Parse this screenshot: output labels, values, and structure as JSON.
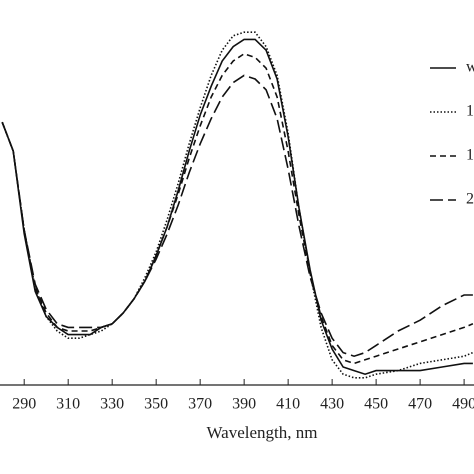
{
  "chart_data": {
    "type": "line",
    "xlabel": "Wavelength, nm",
    "xlim": [
      279,
      494.5
    ],
    "xticks": [
      290,
      310,
      330,
      350,
      370,
      390,
      410,
      430,
      450,
      470,
      490
    ],
    "ylim": [
      0,
      1
    ],
    "x": [
      280,
      285,
      290,
      295,
      300,
      305,
      310,
      315,
      320,
      325,
      330,
      335,
      340,
      345,
      350,
      355,
      360,
      365,
      370,
      375,
      380,
      385,
      390,
      395,
      400,
      405,
      410,
      415,
      420,
      425,
      430,
      435,
      440,
      445,
      450,
      460,
      470,
      480,
      490,
      494
    ],
    "series": [
      {
        "name": "w",
        "color": "#111111",
        "style": "solid",
        "values": [
          0.73,
          0.65,
          0.42,
          0.26,
          0.19,
          0.16,
          0.14,
          0.14,
          0.14,
          0.16,
          0.17,
          0.2,
          0.24,
          0.29,
          0.36,
          0.44,
          0.54,
          0.65,
          0.75,
          0.83,
          0.9,
          0.94,
          0.96,
          0.96,
          0.93,
          0.85,
          0.69,
          0.49,
          0.32,
          0.18,
          0.1,
          0.05,
          0.04,
          0.03,
          0.04,
          0.04,
          0.04,
          0.05,
          0.06,
          0.06
        ]
      },
      {
        "name": "1",
        "color": "#111111",
        "style": "dotted",
        "values": [
          0.73,
          0.65,
          0.43,
          0.27,
          0.19,
          0.15,
          0.13,
          0.13,
          0.14,
          0.15,
          0.17,
          0.2,
          0.24,
          0.3,
          0.37,
          0.46,
          0.56,
          0.67,
          0.77,
          0.86,
          0.93,
          0.97,
          0.98,
          0.98,
          0.94,
          0.86,
          0.7,
          0.49,
          0.31,
          0.16,
          0.07,
          0.03,
          0.02,
          0.02,
          0.03,
          0.04,
          0.06,
          0.07,
          0.08,
          0.09
        ]
      },
      {
        "name": "1",
        "color": "#111111",
        "style": "dashed",
        "values": [
          0.73,
          0.65,
          0.43,
          0.27,
          0.2,
          0.16,
          0.15,
          0.15,
          0.15,
          0.16,
          0.17,
          0.2,
          0.24,
          0.29,
          0.36,
          0.44,
          0.53,
          0.63,
          0.72,
          0.8,
          0.86,
          0.9,
          0.92,
          0.91,
          0.88,
          0.8,
          0.65,
          0.47,
          0.31,
          0.19,
          0.11,
          0.07,
          0.06,
          0.07,
          0.08,
          0.1,
          0.12,
          0.14,
          0.16,
          0.17
        ]
      },
      {
        "name": "2",
        "color": "#111111",
        "style": "longdash",
        "values": [
          0.73,
          0.65,
          0.43,
          0.28,
          0.21,
          0.17,
          0.16,
          0.16,
          0.16,
          0.16,
          0.17,
          0.2,
          0.24,
          0.29,
          0.35,
          0.42,
          0.5,
          0.59,
          0.67,
          0.74,
          0.8,
          0.84,
          0.86,
          0.85,
          0.82,
          0.74,
          0.6,
          0.44,
          0.3,
          0.2,
          0.13,
          0.09,
          0.08,
          0.09,
          0.11,
          0.15,
          0.18,
          0.22,
          0.25,
          0.25
        ]
      }
    ],
    "legend": "upper right"
  }
}
